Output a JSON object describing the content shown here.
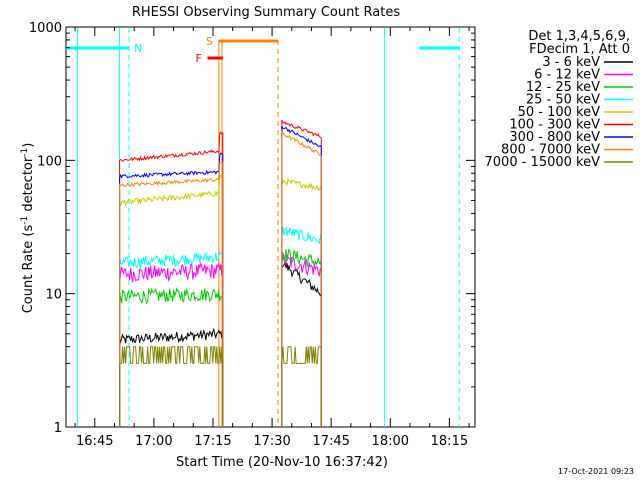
{
  "chart_data": {
    "type": "line",
    "title": "RHESSI Observing Summary Count Rates",
    "xlabel": "Start Time (20-Nov-10 16:37:42)",
    "ylabel_main": "Count Rate (s",
    "ylabel_sup1": "-1",
    "ylabel_mid": " detector",
    "ylabel_sup2": "-1",
    "ylabel_end": ")",
    "yscale": "log",
    "ylim": [
      1,
      1000
    ],
    "xlim_min": [
      997.7,
      1101.5
    ],
    "y_ticks": [
      {
        "value": 1,
        "label": "1"
      },
      {
        "value": 10,
        "label": "10"
      },
      {
        "value": 100,
        "label": "100"
      },
      {
        "value": 1000,
        "label": "1000"
      }
    ],
    "x_ticks": [
      {
        "value": 1005,
        "label": "16:45"
      },
      {
        "value": 1020,
        "label": "17:00"
      },
      {
        "value": 1035,
        "label": "17:15"
      },
      {
        "value": 1050,
        "label": "17:30"
      },
      {
        "value": 1065,
        "label": "17:45"
      },
      {
        "value": 1080,
        "label": "18:00"
      },
      {
        "value": 1095,
        "label": "18:15"
      }
    ],
    "legend_header": [
      "Det 1,3,4,5,6,9,",
      "FDecim 1, Att 0"
    ],
    "series": [
      {
        "name": "3 - 6 keV",
        "color": "#000000",
        "seg1_start": 4.5,
        "seg1_end": 5.0,
        "seg2_start": 17,
        "seg2_end": 10
      },
      {
        "name": "6 - 12 keV",
        "color": "#ff00ff",
        "seg1_start": 14,
        "seg1_end": 15,
        "seg2_start": 18,
        "seg2_end": 15
      },
      {
        "name": "12 - 25 keV",
        "color": "#00cc00",
        "seg1_start": 9.5,
        "seg1_end": 10,
        "seg2_start": 20,
        "seg2_end": 17
      },
      {
        "name": "25 - 50 keV",
        "color": "#00ffff",
        "seg1_start": 17,
        "seg1_end": 19,
        "seg2_start": 30,
        "seg2_end": 25
      },
      {
        "name": "50 - 100 keV",
        "color": "#cccc00",
        "seg1_start": 48,
        "seg1_end": 57,
        "seg2_start": 70,
        "seg2_end": 62
      },
      {
        "name": "100 - 300 keV",
        "color": "#ff0000",
        "seg1_start": 100,
        "seg1_end": 118,
        "seg2_start": 195,
        "seg2_end": 150
      },
      {
        "name": "300 - 800 keV",
        "color": "#0000ff",
        "seg1_start": 76,
        "seg1_end": 82,
        "seg2_start": 180,
        "seg2_end": 125
      },
      {
        "name": "800 - 7000 keV",
        "color": "#ff8000",
        "seg1_start": 65,
        "seg1_end": 72,
        "seg2_start": 160,
        "seg2_end": 110
      },
      {
        "name": "7000 - 15000 keV",
        "color": "#808000",
        "seg1_start": 3,
        "seg1_end": 4.5,
        "seg2_start": 3,
        "seg2_end": 3
      }
    ],
    "data_window_1_min": [
      1011.3,
      1037.5
    ],
    "data_window_2_min": [
      1052.5,
      1062.5
    ],
    "flags": [
      {
        "label": "N",
        "color": "#00ffff",
        "segments": [
          [
            997.7,
            1013.7
          ],
          [
            1087.4,
            1097.5
          ]
        ]
      },
      {
        "label": "S",
        "color": "#ff8000",
        "segments": [
          [
            1036.5,
            1051.5
          ]
        ]
      },
      {
        "label": "F",
        "color": "#ff0000",
        "segments": [
          [
            1033.6,
            1037.5
          ]
        ]
      }
    ],
    "cyan_vlines_solid": [
      1000.6,
      1011.3,
      1078.5
    ],
    "cyan_vlines_dashed": [
      1013.7,
      1097.5
    ],
    "orange_vlines_solid": [
      1036.5,
      1037.3
    ],
    "orange_vlines_dashed": [
      1051.5
    ],
    "timestamp": "17-Oct-2021 09:23"
  }
}
